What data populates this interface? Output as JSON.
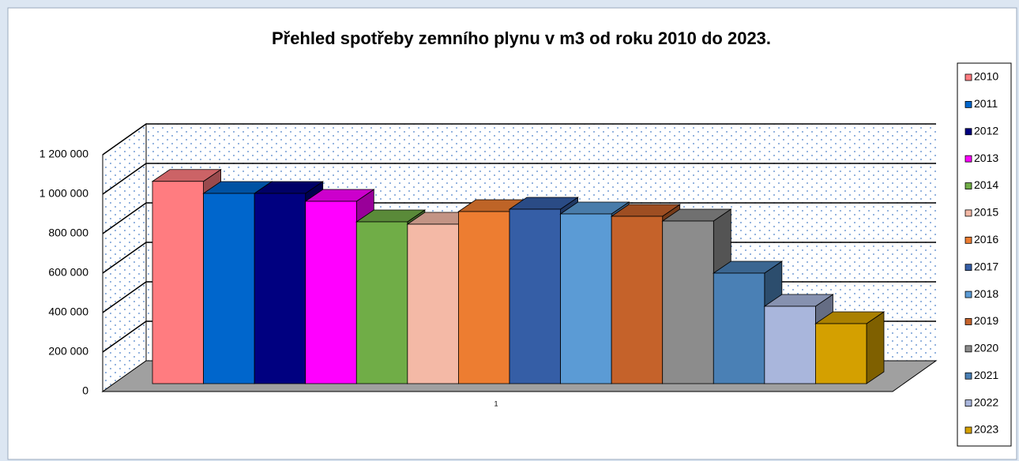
{
  "chart_data": {
    "type": "bar",
    "title": "Přehled spotřeby zemního plynu v m3 od roku 2010 do 2023.",
    "categories": [
      "1"
    ],
    "series": [
      {
        "name": "2010",
        "color": "#ff7c80",
        "values": [
          1025000
        ]
      },
      {
        "name": "2011",
        "color": "#0066cc",
        "values": [
          964000
        ]
      },
      {
        "name": "2012",
        "color": "#000080",
        "values": [
          964000
        ]
      },
      {
        "name": "2013",
        "color": "#ff00ff",
        "values": [
          924000
        ]
      },
      {
        "name": "2014",
        "color": "#70ad47",
        "values": [
          820000
        ]
      },
      {
        "name": "2015",
        "color": "#f4b9a6",
        "values": [
          808000
        ]
      },
      {
        "name": "2016",
        "color": "#ed7d31",
        "values": [
          872000
        ]
      },
      {
        "name": "2017",
        "color": "#355ea6",
        "values": [
          884000
        ]
      },
      {
        "name": "2018",
        "color": "#5b9bd5",
        "values": [
          860000
        ]
      },
      {
        "name": "2019",
        "color": "#c5622a",
        "values": [
          848000
        ]
      },
      {
        "name": "2020",
        "color": "#8c8c8c",
        "values": [
          824000
        ]
      },
      {
        "name": "2021",
        "color": "#4a80b5",
        "values": [
          560000
        ]
      },
      {
        "name": "2022",
        "color": "#a9b6dc",
        "values": [
          392000
        ]
      },
      {
        "name": "2023",
        "color": "#d4a000",
        "values": [
          304000
        ]
      }
    ],
    "ylim": [
      0,
      1200000
    ],
    "yticks": [
      0,
      {
        "value": 200000,
        "label": "200 000"
      },
      {
        "value": 400000,
        "label": "400 000"
      },
      {
        "value": 600000,
        "label": "600 000"
      },
      {
        "value": 800000,
        "label": "800 000"
      },
      {
        "value": 1000000,
        "label": "1 000 000"
      },
      {
        "value": 1200000,
        "label": "1 200 000"
      }
    ],
    "grid": true,
    "legend": "right"
  }
}
